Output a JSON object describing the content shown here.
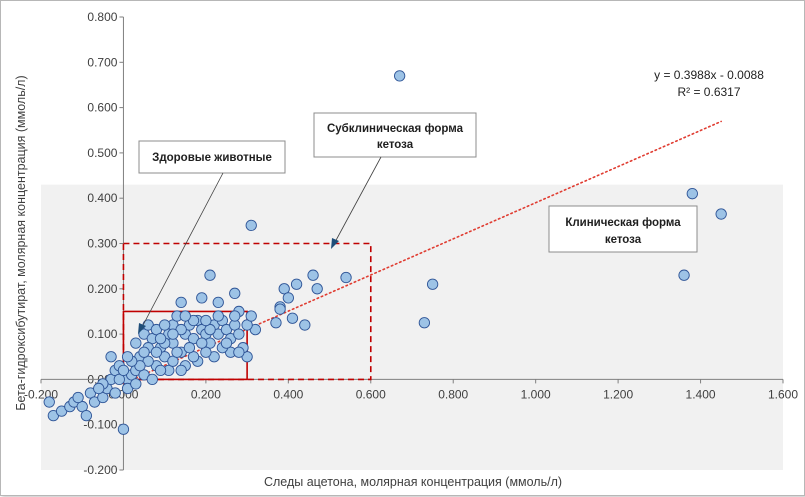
{
  "chart_data": {
    "type": "scatter",
    "title": "",
    "xlabel": "Следы ацетона, молярная концентрация (ммоль/л)",
    "ylabel": "Бета-гидроксибутират, молярная концентрация (ммоль/л)",
    "xlim": [
      -0.2,
      1.6
    ],
    "ylim": [
      -0.2,
      0.8
    ],
    "x_ticks": [
      "-0.200",
      "0.000",
      "0.200",
      "0.400",
      "0.600",
      "0.800",
      "1.000",
      "1.200",
      "1.400",
      "1.600"
    ],
    "y_ticks": [
      "-0.200",
      "-0.100",
      "0.000",
      "0.100",
      "0.200",
      "0.300",
      "0.400",
      "0.500",
      "0.600",
      "0.700",
      "0.800"
    ],
    "grid": false,
    "background_band": {
      "y_from": -0.2,
      "y_to": 0.43,
      "color": "#f1f1f1"
    },
    "series": [
      {
        "marker_color": "#9dc3e6",
        "marker_edge": "#2f5597",
        "points": [
          [
            0.67,
            0.67
          ],
          [
            1.38,
            0.41
          ],
          [
            1.45,
            0.365
          ],
          [
            1.36,
            0.23
          ],
          [
            0.75,
            0.21
          ],
          [
            0.73,
            0.125
          ],
          [
            0.31,
            0.34
          ],
          [
            0.54,
            0.225
          ],
          [
            0.46,
            0.23
          ],
          [
            0.47,
            0.2
          ],
          [
            0.42,
            0.21
          ],
          [
            0.39,
            0.2
          ],
          [
            0.4,
            0.18
          ],
          [
            0.38,
            0.16
          ],
          [
            0.38,
            0.155
          ],
          [
            0.37,
            0.125
          ],
          [
            0.44,
            0.12
          ],
          [
            0.41,
            0.135
          ],
          [
            0.21,
            0.23
          ],
          [
            0.27,
            0.19
          ],
          [
            0.19,
            0.18
          ],
          [
            0.14,
            0.17
          ],
          [
            0.23,
            0.17
          ],
          [
            0.28,
            0.15
          ],
          [
            0.32,
            0.11
          ],
          [
            0.3,
            0.05
          ],
          [
            -0.18,
            -0.05
          ],
          [
            -0.17,
            -0.08
          ],
          [
            -0.15,
            -0.07
          ],
          [
            -0.13,
            -0.06
          ],
          [
            -0.12,
            -0.05
          ],
          [
            -0.1,
            -0.06
          ],
          [
            -0.09,
            -0.08
          ],
          [
            -0.11,
            -0.04
          ],
          [
            -0.08,
            -0.03
          ],
          [
            -0.07,
            -0.05
          ],
          [
            -0.05,
            -0.04
          ],
          [
            -0.04,
            -0.02
          ],
          [
            -0.02,
            -0.03
          ],
          [
            0.0,
            -0.11
          ],
          [
            -0.03,
            0.0
          ],
          [
            -0.02,
            0.02
          ],
          [
            -0.03,
            0.05
          ],
          [
            -0.01,
            0.03
          ],
          [
            0.01,
            0.0
          ],
          [
            0.02,
            0.01
          ],
          [
            0.01,
            -0.02
          ],
          [
            0.03,
            0.02
          ],
          [
            0.04,
            0.05
          ],
          [
            0.03,
            0.08
          ],
          [
            0.05,
            0.1
          ],
          [
            0.06,
            0.12
          ],
          [
            0.07,
            0.09
          ],
          [
            0.08,
            0.11
          ],
          [
            0.09,
            0.07
          ],
          [
            0.1,
            0.05
          ],
          [
            0.11,
            0.1
          ],
          [
            0.12,
            0.12
          ],
          [
            0.13,
            0.14
          ],
          [
            0.12,
            0.08
          ],
          [
            0.14,
            0.06
          ],
          [
            0.15,
            0.1
          ],
          [
            0.16,
            0.12
          ],
          [
            0.17,
            0.09
          ],
          [
            0.18,
            0.13
          ],
          [
            0.19,
            0.11
          ],
          [
            0.2,
            0.1
          ],
          [
            0.21,
            0.08
          ],
          [
            0.22,
            0.12
          ],
          [
            0.23,
            0.1
          ],
          [
            0.24,
            0.13
          ],
          [
            0.25,
            0.11
          ],
          [
            0.26,
            0.09
          ],
          [
            0.27,
            0.12
          ],
          [
            0.28,
            0.1
          ],
          [
            0.29,
            0.07
          ],
          [
            0.3,
            0.12
          ],
          [
            0.31,
            0.14
          ],
          [
            0.26,
            0.06
          ],
          [
            0.22,
            0.05
          ],
          [
            0.18,
            0.04
          ],
          [
            0.15,
            0.03
          ],
          [
            0.11,
            0.02
          ],
          [
            0.08,
            0.03
          ],
          [
            0.06,
            0.04
          ],
          [
            0.05,
            0.01
          ],
          [
            0.07,
            0.0
          ],
          [
            0.09,
            0.02
          ],
          [
            0.12,
            0.04
          ],
          [
            0.14,
            0.02
          ],
          [
            0.17,
            0.05
          ],
          [
            0.2,
            0.06
          ],
          [
            0.24,
            0.07
          ],
          [
            0.16,
            0.07
          ],
          [
            0.1,
            0.08
          ],
          [
            0.13,
            0.06
          ],
          [
            0.19,
            0.08
          ],
          [
            0.21,
            0.11
          ],
          [
            0.25,
            0.08
          ],
          [
            0.28,
            0.06
          ],
          [
            0.04,
            0.03
          ],
          [
            0.02,
            0.04
          ],
          [
            0.06,
            0.07
          ],
          [
            0.08,
            0.06
          ],
          [
            0.1,
            0.12
          ],
          [
            0.14,
            0.11
          ],
          [
            0.17,
            0.13
          ],
          [
            0.2,
            0.13
          ],
          [
            0.23,
            0.14
          ],
          [
            0.27,
            0.14
          ],
          [
            0.15,
            0.14
          ],
          [
            0.12,
            0.1
          ],
          [
            0.09,
            0.09
          ],
          [
            0.05,
            0.06
          ],
          [
            0.01,
            0.05
          ],
          [
            -0.01,
            0.0
          ],
          [
            0.0,
            0.02
          ],
          [
            0.03,
            -0.01
          ],
          [
            -0.05,
            -0.01
          ],
          [
            -0.06,
            -0.02
          ]
        ]
      }
    ],
    "trendline": {
      "slope": 0.3988,
      "intercept": -0.0088,
      "x_from": 0.0,
      "x_to": 1.45,
      "color": "#e03c31",
      "style": "dotted"
    },
    "equation_text": "y = 0.3988x - 0.0088",
    "r2_text": "R² = 0.6317",
    "regions": [
      {
        "label": "healthy",
        "x": [
          0.0,
          0.3
        ],
        "y": [
          0.0,
          0.15
        ],
        "style": "solid",
        "color": "#c00000"
      },
      {
        "label": "subclinical",
        "x": [
          0.0,
          0.6
        ],
        "y": [
          0.0,
          0.3
        ],
        "style": "dashed",
        "color": "#c00000"
      }
    ],
    "annotations": [
      {
        "text": "Здоровые животные"
      },
      {
        "text_lines": [
          "Субклиническая форма",
          "кетоза"
        ]
      },
      {
        "text_lines": [
          "Клиническая форма",
          "кетоза"
        ]
      }
    ]
  }
}
